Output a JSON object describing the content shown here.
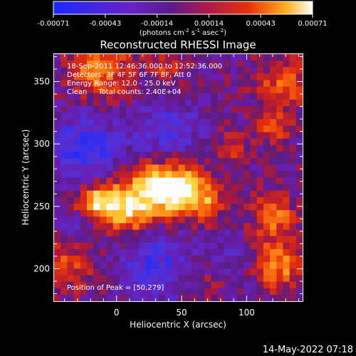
{
  "chart_data": {
    "type": "heatmap",
    "title": "Reconstructed RHESSI Image",
    "xlabel": "Heliocentric X (arcsec)",
    "ylabel": "Heliocentric Y (arcsec)",
    "xlim": [
      -48,
      143
    ],
    "ylim": [
      174,
      372
    ],
    "xticks": [
      0,
      50,
      100
    ],
    "yticks": [
      200,
      250,
      300,
      350
    ],
    "colorbar": {
      "ticks": [
        "-0.00071",
        "-0.00043",
        "-0.00014",
        "0.00014",
        "0.00043",
        "0.00071"
      ],
      "range": [
        -0.00071,
        0.00071
      ],
      "units_line1": "(photons cm",
      "units_sup1": "-2",
      "units_line2": " s",
      "units_sup2": "-1",
      "units_line3": " asec",
      "units_sup3": "-2",
      "units_close": ")"
    },
    "annotations": [
      "18-Sep-2011 12:46:36.000 to 12:52:36.000",
      "Detectors: 3F 4F 5F 6F 7F 8F, Att 0",
      "Energy Range: 12.0 - 25.0 keV",
      "Clean     Total counts: 2.40E+04"
    ],
    "peak_label": "Position of Peak = [50,279]",
    "peak": [
      50,
      279
    ],
    "colors": {
      "low": "#1a28ff",
      "mid_low": "#6a22c8",
      "zero": "#5a1a8a",
      "mid_high": "#e8240a",
      "high": "#ffd23a",
      "max": "#ffffff"
    }
  },
  "footer_timestamp": "14-May-2022 07:18"
}
